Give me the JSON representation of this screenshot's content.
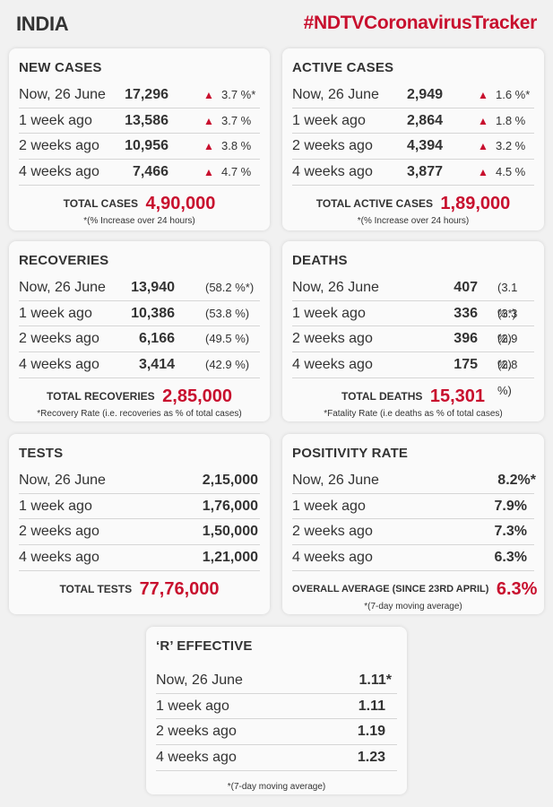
{
  "header": {
    "country": "INDIA",
    "hashtag": "#NDTVCoronavirusTracker"
  },
  "new_cases": {
    "title": "NEW CASES",
    "rows": [
      {
        "label": "Now, 26 June",
        "value": "17,296",
        "change": "3.7 %*"
      },
      {
        "label": "1 week ago",
        "value": "13,586",
        "change": "3.7 %"
      },
      {
        "label": "2 weeks ago",
        "value": "10,956",
        "change": "3.8 %"
      },
      {
        "label": "4 weeks ago",
        "value": "7,466",
        "change": "4.7 %"
      }
    ],
    "total_label": "TOTAL CASES",
    "total_value": "4,90,000",
    "note": "*(% Increase over 24 hours)"
  },
  "active_cases": {
    "title": "ACTIVE CASES",
    "rows": [
      {
        "label": "Now, 26 June",
        "value": "2,949",
        "change": "1.6 %*"
      },
      {
        "label": "1 week ago",
        "value": "2,864",
        "change": "1.8 %"
      },
      {
        "label": "2 weeks ago",
        "value": "4,394",
        "change": "3.2 %"
      },
      {
        "label": "4 weeks ago",
        "value": "3,877",
        "change": "4.5 %"
      }
    ],
    "total_label": "TOTAL ACTIVE CASES",
    "total_value": "1,89,000",
    "note": "*(% Increase over 24 hours)"
  },
  "recoveries": {
    "title": "RECOVERIES",
    "rows": [
      {
        "label": "Now, 26 June",
        "value": "13,940",
        "change": "(58.2 %*)"
      },
      {
        "label": "1 week ago",
        "value": "10,386",
        "change": "(53.8 %)"
      },
      {
        "label": "2 weeks ago",
        "value": "6,166",
        "change": "(49.5 %)"
      },
      {
        "label": "4 weeks ago",
        "value": "3,414",
        "change": "(42.9 %)"
      }
    ],
    "total_label": "TOTAL RECOVERIES",
    "total_value": "2,85,000",
    "note": "*Recovery Rate (i.e. recoveries as % of total cases)"
  },
  "deaths": {
    "title": "DEATHS",
    "rows": [
      {
        "label": "Now, 26 June",
        "value": "407",
        "change": "(3.1 %*)"
      },
      {
        "label": "1 week ago",
        "value": "336",
        "change": "(3.3 %)"
      },
      {
        "label": "2 weeks ago",
        "value": "396",
        "change": "(2.9 %)"
      },
      {
        "label": "4 weeks ago",
        "value": "175",
        "change": "(2.8 %)"
      }
    ],
    "total_label": "TOTAL DEATHS",
    "total_value": "15,301",
    "note": "*Fatality Rate (i.e deaths as % of total cases)"
  },
  "tests": {
    "title": "TESTS",
    "rows": [
      {
        "label": "Now, 26 June",
        "value": "2,15,000"
      },
      {
        "label": "1 week ago",
        "value": "1,76,000"
      },
      {
        "label": "2 weeks ago",
        "value": "1,50,000"
      },
      {
        "label": "4 weeks ago",
        "value": "1,21,000"
      }
    ],
    "total_label": "TOTAL TESTS",
    "total_value": "77,76,000"
  },
  "positivity": {
    "title": "POSITIVITY RATE",
    "rows": [
      {
        "label": "Now, 26 June",
        "value": "8.2%*"
      },
      {
        "label": "1 week ago",
        "value": "7.9%"
      },
      {
        "label": "2 weeks ago",
        "value": "7.3%"
      },
      {
        "label": "4 weeks ago",
        "value": "6.3%"
      }
    ],
    "total_label": "OVERALL AVERAGE (SINCE 23RD APRIL)",
    "total_value": "6.3%",
    "note": "*(7-day moving average)"
  },
  "r_effective": {
    "title": "‘R’ EFFECTIVE",
    "rows": [
      {
        "label": "Now, 26 June",
        "value": "1.11*"
      },
      {
        "label": "1 week ago",
        "value": "1.11"
      },
      {
        "label": "2 weeks ago",
        "value": "1.19"
      },
      {
        "label": "4 weeks ago",
        "value": "1.23"
      }
    ],
    "note": "*(7-day moving average)"
  },
  "colors": {
    "accent": "#c8102e",
    "card_bg": "#fafafa",
    "page_bg": "#f1f1f1"
  }
}
